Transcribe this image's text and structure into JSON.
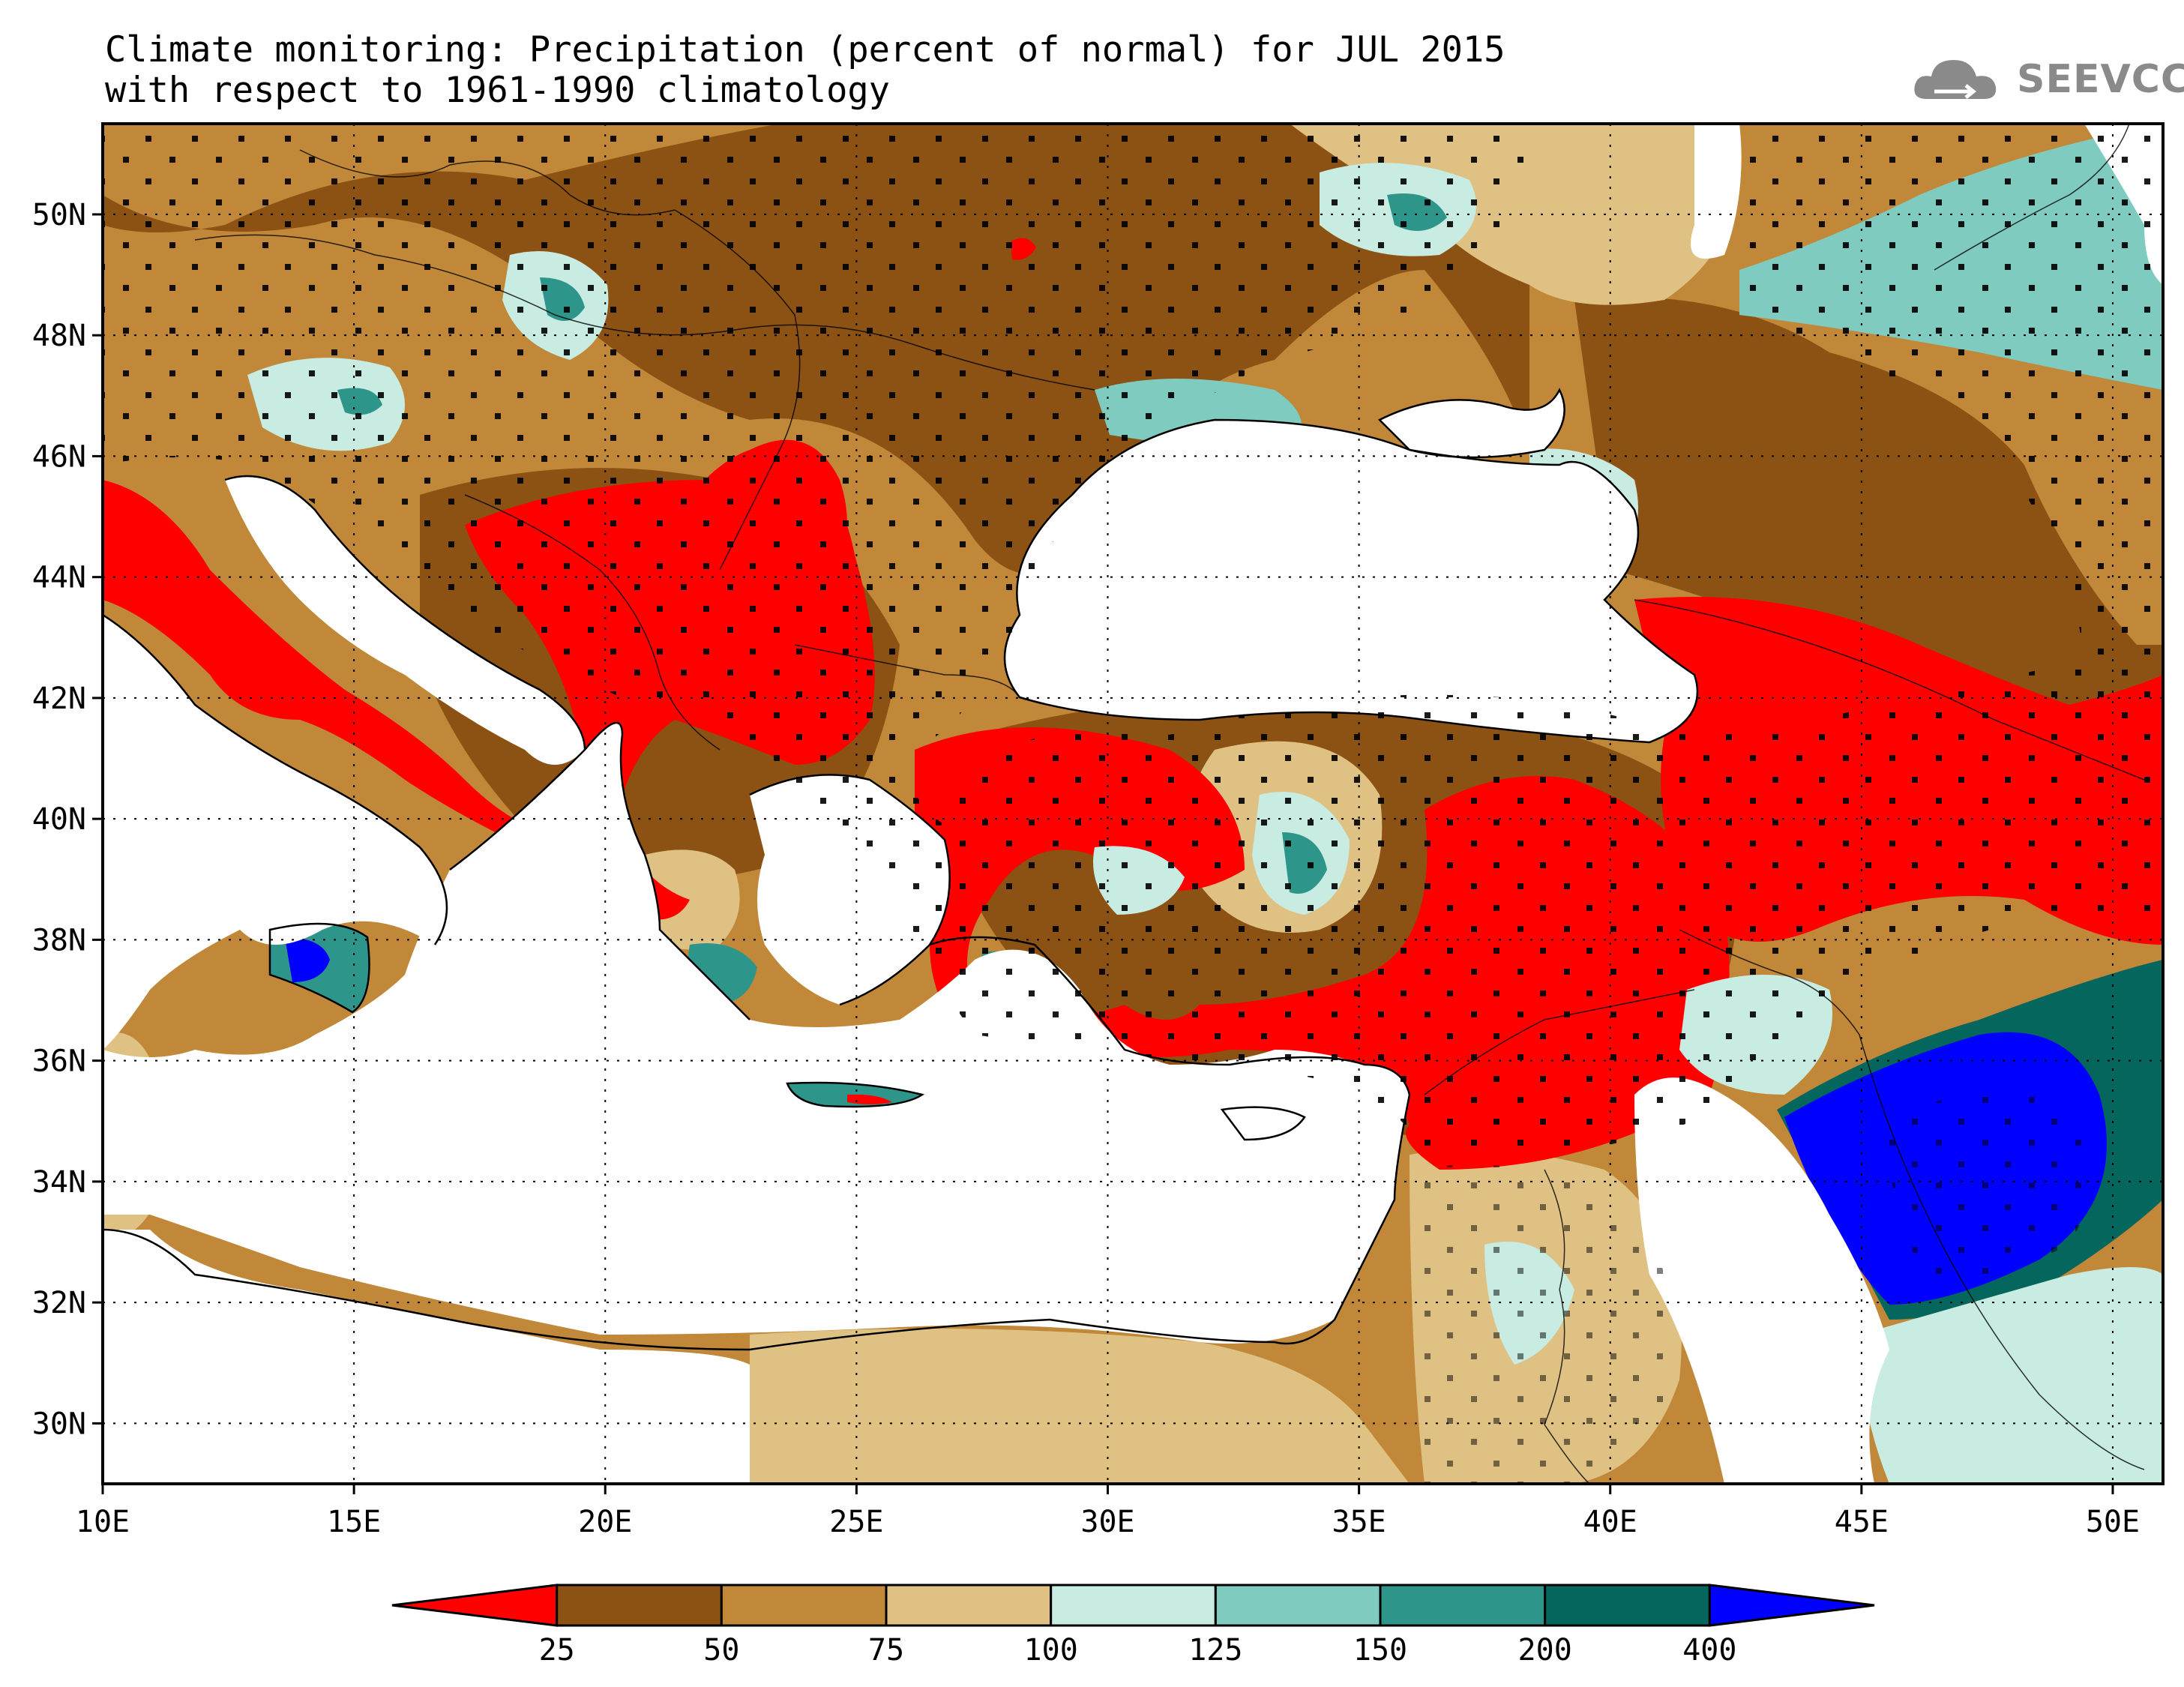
{
  "header": {
    "title_line1": "Climate monitoring: Precipitation (percent of normal) for JUL 2015",
    "title_line2": "with respect to 1961-1990 climatology",
    "logo_text": "SEEVCCC"
  },
  "map": {
    "lon_range": [
      10,
      51
    ],
    "lat_range": [
      29,
      51.5
    ],
    "x_ticks": [
      "10E",
      "15E",
      "20E",
      "25E",
      "30E",
      "35E",
      "40E",
      "45E",
      "50E"
    ],
    "y_ticks": [
      "30N",
      "32N",
      "34N",
      "36N",
      "38N",
      "40N",
      "42N",
      "44N",
      "46N",
      "48N",
      "50N"
    ],
    "gridlines": "dotted"
  },
  "colorbar": {
    "labels": [
      "25",
      "50",
      "75",
      "100",
      "125",
      "150",
      "200",
      "400"
    ],
    "colors": [
      "#ff0000",
      "#8b5214",
      "#c08838",
      "#dfc283",
      "#c8ebe2",
      "#80cbbf",
      "#2e958a",
      "#05665e",
      "#0000ff"
    ]
  },
  "colors": {
    "sea": "#ffffff",
    "very_dry": "#ff0000",
    "dry": "#8b5214",
    "moderate_dry": "#c08838",
    "slightly_dry": "#dfc283",
    "slightly_wet": "#c8ebe2",
    "wet": "#80cbbf",
    "very_wet": "#2e958a",
    "extremely_wet": "#05665e",
    "max_wet": "#0000ff"
  }
}
